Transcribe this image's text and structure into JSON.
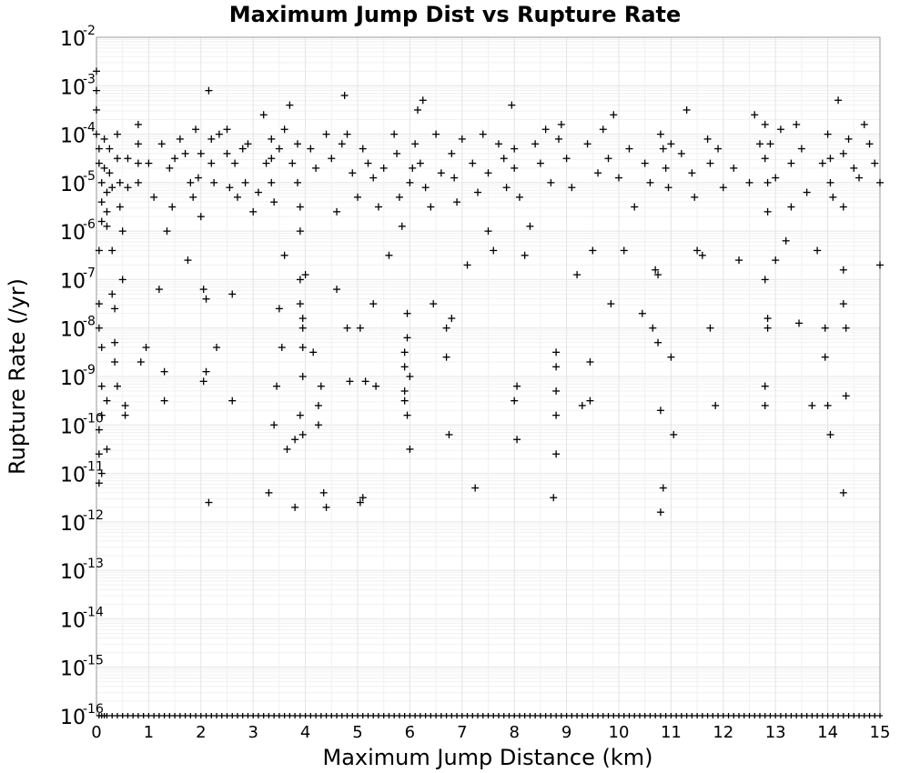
{
  "chart_data": {
    "type": "scatter",
    "title": "Maximum Jump Dist vs Rupture Rate",
    "xlabel": "Maximum Jump Distance (km)",
    "ylabel": "Rupture Rate (/yr)",
    "xlim": [
      0,
      15
    ],
    "ylim_log10": [
      -16,
      -2
    ],
    "yscale": "log",
    "grid": true,
    "marker": "plus",
    "marker_color": "#000000",
    "x_ticks": [
      "0",
      "1",
      "2",
      "3",
      "4",
      "5",
      "6",
      "7",
      "8",
      "9",
      "10",
      "11",
      "12",
      "13",
      "14",
      "15"
    ],
    "y_ticks": [
      {
        "base": "10",
        "exp": "-2"
      },
      {
        "base": "10",
        "exp": "-3"
      },
      {
        "base": "10",
        "exp": "-4"
      },
      {
        "base": "10",
        "exp": "-5"
      },
      {
        "base": "10",
        "exp": "-6"
      },
      {
        "base": "10",
        "exp": "-7"
      },
      {
        "base": "10",
        "exp": "-8"
      },
      {
        "base": "10",
        "exp": "-9"
      },
      {
        "base": "10",
        "exp": "-10"
      },
      {
        "base": "10",
        "exp": "-11"
      },
      {
        "base": "10",
        "exp": "-12"
      },
      {
        "base": "10",
        "exp": "-13"
      },
      {
        "base": "10",
        "exp": "-14"
      },
      {
        "base": "10",
        "exp": "-15"
      },
      {
        "base": "10",
        "exp": "-16"
      }
    ],
    "points_log10": [
      [
        0,
        -2.7
      ],
      [
        0,
        -3.1
      ],
      [
        0,
        -3.5
      ],
      [
        0,
        -4.0
      ],
      [
        0.05,
        -4.3
      ],
      [
        0.05,
        -4.6
      ],
      [
        0.1,
        -5.0
      ],
      [
        0.1,
        -5.4
      ],
      [
        0.1,
        -5.8
      ],
      [
        0.05,
        -6.4
      ],
      [
        0.05,
        -7.5
      ],
      [
        0.05,
        -8.0
      ],
      [
        0.1,
        -8.4
      ],
      [
        0.1,
        -9.2
      ],
      [
        0.1,
        -9.8
      ],
      [
        0.05,
        -10.1
      ],
      [
        0.05,
        -10.6
      ],
      [
        0.1,
        -11.0
      ],
      [
        0.05,
        -11.2
      ],
      [
        0.15,
        -4.1
      ],
      [
        0.15,
        -4.7
      ],
      [
        0.2,
        -5.2
      ],
      [
        0.2,
        -5.6
      ],
      [
        0.2,
        -5.9
      ],
      [
        0.25,
        -4.3
      ],
      [
        0.25,
        -4.8
      ],
      [
        0.3,
        -5.1
      ],
      [
        0.3,
        -6.4
      ],
      [
        0.3,
        -7.3
      ],
      [
        0.35,
        -7.6
      ],
      [
        0.35,
        -8.3
      ],
      [
        0.35,
        -8.7
      ],
      [
        0.4,
        -9.2
      ],
      [
        0.2,
        -9.5
      ],
      [
        0.2,
        -10.5
      ],
      [
        0.4,
        -4.0
      ],
      [
        0.4,
        -4.5
      ],
      [
        0.45,
        -5.0
      ],
      [
        0.45,
        -5.5
      ],
      [
        0.5,
        -6.0
      ],
      [
        0.5,
        -7.0
      ],
      [
        0.55,
        -9.6
      ],
      [
        0.55,
        -9.8
      ],
      [
        0.6,
        -4.5
      ],
      [
        0.6,
        -5.1
      ],
      [
        0.8,
        -3.8
      ],
      [
        0.8,
        -4.2
      ],
      [
        0.8,
        -4.6
      ],
      [
        0.8,
        -5.0
      ],
      [
        0.85,
        -8.7
      ],
      [
        0.95,
        -8.4
      ],
      [
        1.0,
        -4.6
      ],
      [
        1.1,
        -5.3
      ],
      [
        1.2,
        -7.2
      ],
      [
        1.25,
        -4.2
      ],
      [
        1.3,
        -8.9
      ],
      [
        1.3,
        -9.5
      ],
      [
        1.35,
        -6.0
      ],
      [
        1.4,
        -4.7
      ],
      [
        1.45,
        -5.5
      ],
      [
        1.5,
        -4.5
      ],
      [
        1.6,
        -4.1
      ],
      [
        1.7,
        -4.4
      ],
      [
        1.75,
        -6.6
      ],
      [
        1.8,
        -5.0
      ],
      [
        1.85,
        -5.3
      ],
      [
        1.9,
        -3.9
      ],
      [
        1.95,
        -4.9
      ],
      [
        2.0,
        -4.4
      ],
      [
        2.0,
        -5.7
      ],
      [
        2.05,
        -7.2
      ],
      [
        2.1,
        -7.4
      ],
      [
        2.05,
        -9.1
      ],
      [
        2.1,
        -8.9
      ],
      [
        2.15,
        -3.1
      ],
      [
        2.2,
        -4.1
      ],
      [
        2.2,
        -4.6
      ],
      [
        2.15,
        -11.6
      ],
      [
        2.25,
        -5.0
      ],
      [
        2.3,
        -8.4
      ],
      [
        2.35,
        -4.0
      ],
      [
        2.5,
        -3.9
      ],
      [
        2.5,
        -4.4
      ],
      [
        2.55,
        -5.1
      ],
      [
        2.6,
        -7.3
      ],
      [
        2.6,
        -9.5
      ],
      [
        2.65,
        -4.6
      ],
      [
        2.7,
        -5.3
      ],
      [
        2.8,
        -4.3
      ],
      [
        2.85,
        -5.0
      ],
      [
        2.9,
        -4.2
      ],
      [
        3.0,
        -5.6
      ],
      [
        3.1,
        -5.2
      ],
      [
        3.2,
        -3.6
      ],
      [
        3.25,
        -4.6
      ],
      [
        3.3,
        -11.4
      ],
      [
        3.35,
        -4.1
      ],
      [
        3.35,
        -4.5
      ],
      [
        3.35,
        -5.0
      ],
      [
        3.4,
        -5.4
      ],
      [
        3.4,
        -10.0
      ],
      [
        3.45,
        -9.2
      ],
      [
        3.5,
        -4.3
      ],
      [
        3.5,
        -7.6
      ],
      [
        3.55,
        -8.4
      ],
      [
        3.6,
        -3.9
      ],
      [
        3.6,
        -6.5
      ],
      [
        3.65,
        -10.5
      ],
      [
        3.7,
        -3.4
      ],
      [
        3.75,
        -4.6
      ],
      [
        3.8,
        -11.7
      ],
      [
        3.8,
        -10.3
      ],
      [
        3.85,
        -4.2
      ],
      [
        3.85,
        -5.0
      ],
      [
        3.9,
        -5.5
      ],
      [
        3.9,
        -6.0
      ],
      [
        3.9,
        -7.0
      ],
      [
        3.9,
        -7.5
      ],
      [
        3.95,
        -7.8
      ],
      [
        3.95,
        -8.0
      ],
      [
        3.95,
        -8.4
      ],
      [
        3.95,
        -9.0
      ],
      [
        3.9,
        -9.8
      ],
      [
        3.95,
        -10.2
      ],
      [
        4.0,
        -6.9
      ],
      [
        4.1,
        -4.3
      ],
      [
        4.15,
        -8.5
      ],
      [
        4.2,
        -4.7
      ],
      [
        4.25,
        -9.6
      ],
      [
        4.25,
        -10.0
      ],
      [
        4.3,
        -9.2
      ],
      [
        4.35,
        -11.4
      ],
      [
        4.4,
        -11.7
      ],
      [
        4.4,
        -4.0
      ],
      [
        4.5,
        -4.5
      ],
      [
        4.6,
        -5.6
      ],
      [
        4.6,
        -7.2
      ],
      [
        4.7,
        -4.2
      ],
      [
        4.75,
        -3.2
      ],
      [
        4.8,
        -4.0
      ],
      [
        4.8,
        -8.0
      ],
      [
        4.85,
        -9.1
      ],
      [
        4.9,
        -4.8
      ],
      [
        5.0,
        -5.3
      ],
      [
        5.05,
        -8.0
      ],
      [
        5.1,
        -4.3
      ],
      [
        5.15,
        -9.1
      ],
      [
        5.05,
        -11.6
      ],
      [
        5.1,
        -11.5
      ],
      [
        5.2,
        -4.6
      ],
      [
        5.3,
        -4.9
      ],
      [
        5.3,
        -7.5
      ],
      [
        5.35,
        -9.2
      ],
      [
        5.4,
        -5.5
      ],
      [
        5.5,
        -4.7
      ],
      [
        5.6,
        -6.5
      ],
      [
        5.7,
        -4.0
      ],
      [
        5.75,
        -4.4
      ],
      [
        5.8,
        -5.3
      ],
      [
        5.85,
        -5.9
      ],
      [
        5.9,
        -8.5
      ],
      [
        5.9,
        -8.8
      ],
      [
        5.9,
        -9.3
      ],
      [
        5.9,
        -9.5
      ],
      [
        5.95,
        -9.8
      ],
      [
        5.95,
        -7.7
      ],
      [
        5.95,
        -8.2
      ],
      [
        6.0,
        -10.5
      ],
      [
        6.0,
        -9.0
      ],
      [
        6.0,
        -5.0
      ],
      [
        6.05,
        -4.7
      ],
      [
        6.1,
        -4.2
      ],
      [
        6.15,
        -3.5
      ],
      [
        6.2,
        -4.6
      ],
      [
        6.25,
        -3.3
      ],
      [
        6.3,
        -5.1
      ],
      [
        6.4,
        -5.5
      ],
      [
        6.45,
        -7.5
      ],
      [
        6.5,
        -4.0
      ],
      [
        6.6,
        -4.8
      ],
      [
        6.7,
        -8.0
      ],
      [
        6.7,
        -8.6
      ],
      [
        6.75,
        -10.2
      ],
      [
        6.8,
        -7.8
      ],
      [
        6.8,
        -4.4
      ],
      [
        6.85,
        -4.9
      ],
      [
        6.9,
        -5.4
      ],
      [
        7.0,
        -4.1
      ],
      [
        7.1,
        -6.7
      ],
      [
        7.2,
        -4.6
      ],
      [
        7.25,
        -11.3
      ],
      [
        7.3,
        -5.2
      ],
      [
        7.4,
        -4.0
      ],
      [
        7.5,
        -6.0
      ],
      [
        7.5,
        -4.8
      ],
      [
        7.6,
        -6.4
      ],
      [
        7.7,
        -4.2
      ],
      [
        7.8,
        -4.5
      ],
      [
        7.85,
        -5.1
      ],
      [
        7.95,
        -3.4
      ],
      [
        8.0,
        -4.3
      ],
      [
        8.0,
        -4.7
      ],
      [
        8.05,
        -9.2
      ],
      [
        8.0,
        -9.5
      ],
      [
        8.05,
        -10.3
      ],
      [
        8.1,
        -5.3
      ],
      [
        8.2,
        -6.5
      ],
      [
        8.3,
        -5.9
      ],
      [
        8.4,
        -4.2
      ],
      [
        8.5,
        -4.6
      ],
      [
        8.6,
        -3.9
      ],
      [
        8.7,
        -5.0
      ],
      [
        8.75,
        -11.5
      ],
      [
        8.8,
        -10.6
      ],
      [
        8.8,
        -8.5
      ],
      [
        8.8,
        -8.8
      ],
      [
        8.8,
        -9.3
      ],
      [
        8.8,
        -9.8
      ],
      [
        8.85,
        -4.1
      ],
      [
        8.9,
        -3.8
      ],
      [
        9.0,
        -4.5
      ],
      [
        9.1,
        -5.1
      ],
      [
        9.2,
        -6.9
      ],
      [
        9.3,
        -9.6
      ],
      [
        9.4,
        -4.2
      ],
      [
        9.45,
        -8.7
      ],
      [
        9.45,
        -9.5
      ],
      [
        9.5,
        -6.4
      ],
      [
        9.6,
        -4.8
      ],
      [
        9.7,
        -3.9
      ],
      [
        9.8,
        -4.5
      ],
      [
        9.85,
        -7.5
      ],
      [
        9.9,
        -3.6
      ],
      [
        10.0,
        -4.9
      ],
      [
        10.1,
        -6.4
      ],
      [
        10.2,
        -4.3
      ],
      [
        10.3,
        -5.5
      ],
      [
        10.45,
        -7.7
      ],
      [
        10.5,
        -4.6
      ],
      [
        10.6,
        -5.0
      ],
      [
        10.65,
        -8.0
      ],
      [
        10.7,
        -6.8
      ],
      [
        10.75,
        -6.9
      ],
      [
        10.75,
        -8.3
      ],
      [
        10.8,
        -9.7
      ],
      [
        10.8,
        -11.8
      ],
      [
        10.85,
        -11.3
      ],
      [
        10.8,
        -4.0
      ],
      [
        10.85,
        -4.3
      ],
      [
        10.9,
        -4.7
      ],
      [
        10.95,
        -5.1
      ],
      [
        11.0,
        -4.2
      ],
      [
        11.0,
        -8.6
      ],
      [
        11.05,
        -10.2
      ],
      [
        11.2,
        -4.4
      ],
      [
        11.3,
        -3.5
      ],
      [
        11.4,
        -4.8
      ],
      [
        11.45,
        -5.3
      ],
      [
        11.5,
        -6.4
      ],
      [
        11.6,
        -6.5
      ],
      [
        11.7,
        -4.1
      ],
      [
        11.75,
        -4.6
      ],
      [
        11.75,
        -8.0
      ],
      [
        11.85,
        -9.6
      ],
      [
        11.9,
        -4.3
      ],
      [
        12.0,
        -5.1
      ],
      [
        12.2,
        -4.7
      ],
      [
        12.3,
        -6.6
      ],
      [
        12.5,
        -5.0
      ],
      [
        12.6,
        -3.6
      ],
      [
        12.7,
        -4.2
      ],
      [
        12.8,
        -3.8
      ],
      [
        12.8,
        -4.5
      ],
      [
        12.85,
        -5.0
      ],
      [
        12.85,
        -5.6
      ],
      [
        12.8,
        -7.0
      ],
      [
        12.85,
        -7.8
      ],
      [
        12.85,
        -8.0
      ],
      [
        12.8,
        -9.2
      ],
      [
        12.8,
        -9.6
      ],
      [
        12.9,
        -4.2
      ],
      [
        13.0,
        -4.9
      ],
      [
        13.0,
        -6.6
      ],
      [
        13.1,
        -3.9
      ],
      [
        13.2,
        -6.2
      ],
      [
        13.3,
        -4.6
      ],
      [
        13.3,
        -5.5
      ],
      [
        13.4,
        -3.8
      ],
      [
        13.45,
        -7.9
      ],
      [
        13.5,
        -4.3
      ],
      [
        13.6,
        -5.2
      ],
      [
        13.7,
        -9.6
      ],
      [
        13.8,
        -6.4
      ],
      [
        13.9,
        -4.6
      ],
      [
        13.95,
        -8.0
      ],
      [
        13.95,
        -8.6
      ],
      [
        14.0,
        -9.6
      ],
      [
        14.0,
        -4.0
      ],
      [
        14.05,
        -4.5
      ],
      [
        14.05,
        -5.0
      ],
      [
        14.1,
        -5.3
      ],
      [
        14.05,
        -10.2
      ],
      [
        14.2,
        -3.3
      ],
      [
        14.3,
        -5.5
      ],
      [
        14.3,
        -4.4
      ],
      [
        14.3,
        -6.8
      ],
      [
        14.3,
        -7.5
      ],
      [
        14.35,
        -8.0
      ],
      [
        14.35,
        -9.4
      ],
      [
        14.3,
        -11.4
      ],
      [
        14.4,
        -4.1
      ],
      [
        14.5,
        -4.7
      ],
      [
        14.6,
        -4.9
      ],
      [
        14.7,
        -3.8
      ],
      [
        14.8,
        -4.2
      ],
      [
        14.9,
        -4.6
      ],
      [
        15.0,
        -5.0
      ],
      [
        15.0,
        -6.7
      ]
    ],
    "bottom_row_log10": -16,
    "bottom_row_x": [
      0.05,
      0.1,
      0.15,
      0.2,
      0.3,
      0.4,
      0.5,
      0.6,
      0.7,
      0.8,
      0.9,
      1.0,
      1.1,
      1.2,
      1.3,
      1.4,
      1.5,
      1.6,
      1.7,
      1.8,
      1.9,
      2.0,
      2.1,
      2.2,
      2.3,
      2.4,
      2.5,
      2.6,
      2.7,
      2.8,
      2.9,
      3.0,
      3.1,
      3.2,
      3.3,
      3.4,
      3.5,
      3.6,
      3.7,
      3.8,
      3.9,
      4.0,
      4.1,
      4.2,
      4.3,
      4.4,
      4.5,
      4.6,
      4.7,
      4.8,
      4.9,
      5.0,
      5.1,
      5.2,
      5.3,
      5.4,
      5.5,
      5.6,
      5.7,
      5.8,
      5.9,
      6.0,
      6.1,
      6.2,
      6.3,
      6.4,
      6.5,
      6.6,
      6.7,
      6.8,
      6.9,
      7.0,
      7.1,
      7.2,
      7.3,
      7.4,
      7.5,
      7.6,
      7.7,
      7.8,
      7.9,
      8.0,
      8.1,
      8.2,
      8.3,
      8.4,
      8.5,
      8.6,
      8.7,
      8.8,
      8.9,
      9.0,
      9.1,
      9.2,
      9.3,
      9.4,
      9.5,
      9.6,
      9.7,
      9.8,
      9.9,
      10.0,
      10.1,
      10.2,
      10.3,
      10.4,
      10.5,
      10.6,
      10.7,
      10.8,
      10.9,
      11.0,
      11.1,
      11.2,
      11.3,
      11.4,
      11.5,
      11.6,
      11.7,
      11.8,
      11.9,
      12.0,
      12.1,
      12.2,
      12.3,
      12.4,
      12.5,
      12.6,
      12.7,
      12.8,
      12.9,
      13.0,
      13.1,
      13.2,
      13.3,
      13.4,
      13.5,
      13.6,
      13.7,
      13.8,
      13.9,
      14.0,
      14.1,
      14.2,
      14.3,
      14.4,
      14.5,
      14.6,
      14.7,
      14.8,
      14.9,
      15.0
    ]
  }
}
